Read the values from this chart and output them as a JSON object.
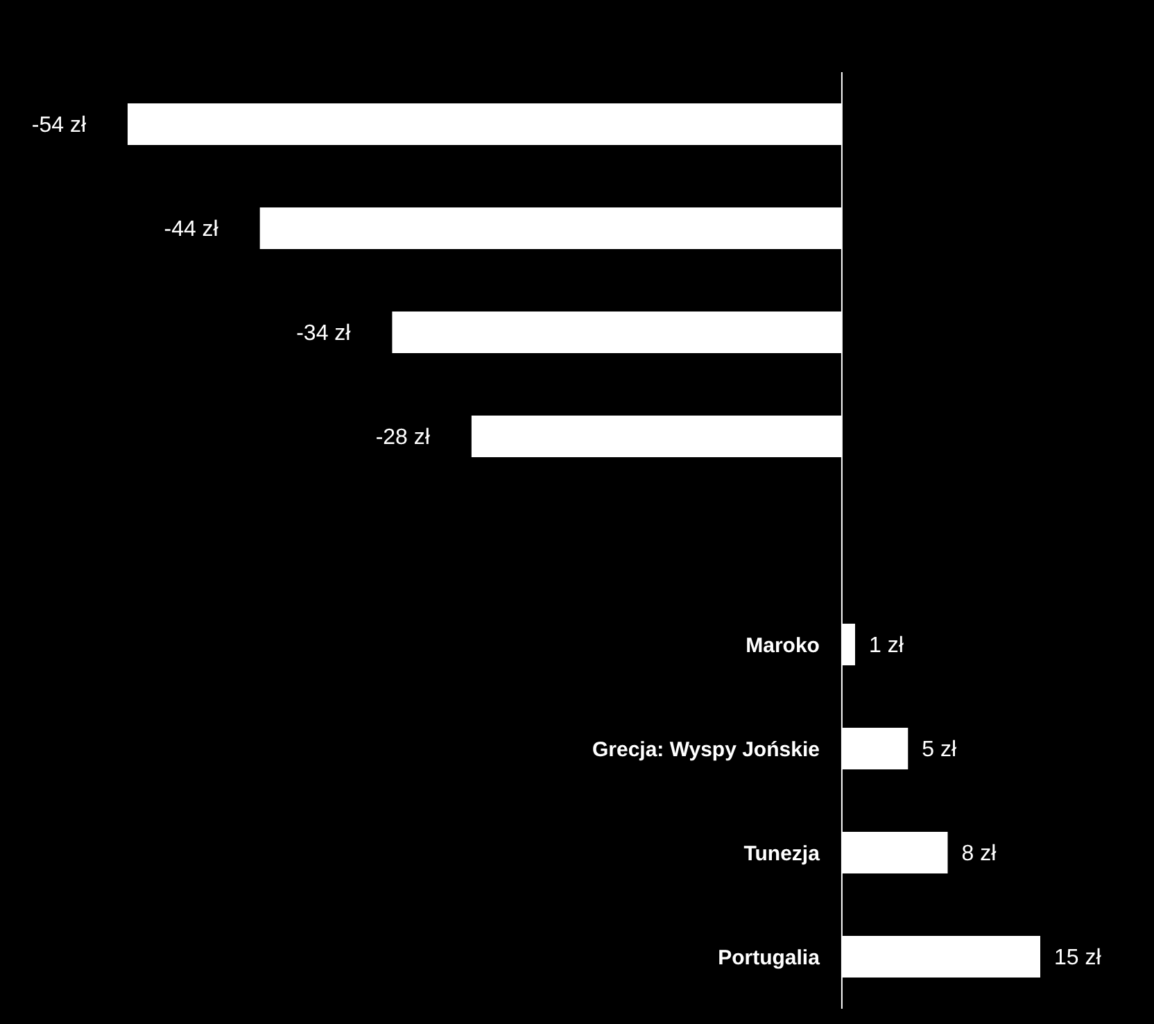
{
  "chart_data": {
    "type": "bar",
    "orientation": "horizontal",
    "categories": [
      null,
      null,
      null,
      null,
      null,
      "Maroko",
      "Grecja: Wyspy Jońskie",
      "Tunezja",
      "Portugalia"
    ],
    "values": [
      -54,
      -44,
      -34,
      -28,
      null,
      1,
      5,
      8,
      15
    ],
    "value_labels": [
      "-54 zł",
      "-44 zł",
      "-34 zł",
      "-28 zł",
      null,
      "1 zł",
      "5 zł",
      "8 zł",
      "15 zł"
    ],
    "color": "#ffffff"
  }
}
